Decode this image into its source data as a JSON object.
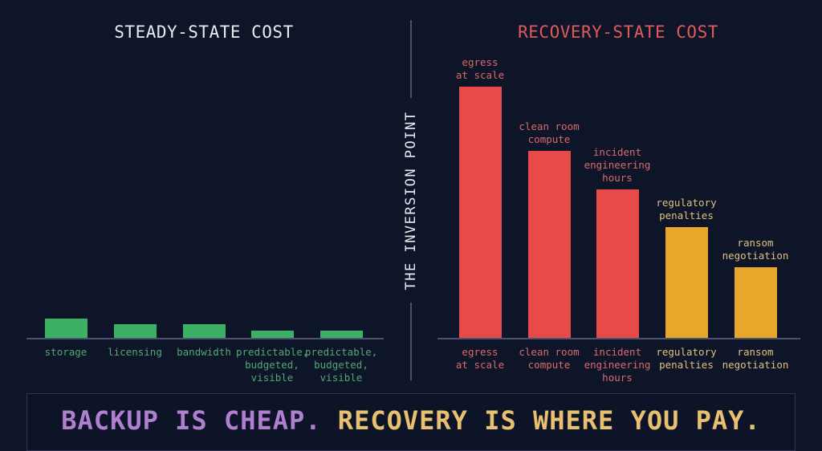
{
  "header": {
    "left_title": "STEADY-STATE COST",
    "right_title": "RECOVERY-STATE COST",
    "divider_label": "THE INVERSION POINT"
  },
  "footer": {
    "part_a": "BACKUP IS CHEAP.",
    "part_b": "RECOVERY IS WHERE YOU PAY."
  },
  "colors": {
    "background": "#0f1528",
    "steady_bar": "#3cb064",
    "steady_label": "#4fa872",
    "recovery_red": "#e84a4a",
    "recovery_red_label": "#d86a6a",
    "recovery_amber": "#e8a62a",
    "recovery_amber_label": "#e0c080",
    "footer_purple": "#b07fd0",
    "footer_gold": "#e8c070"
  },
  "chart_data": [
    {
      "type": "bar",
      "title": "STEADY-STATE COST",
      "xlabel": "",
      "ylabel": "",
      "categories": [
        "storage",
        "licensing",
        "bandwidth",
        "predictable,\nbudgeted,\nvisible",
        "predictable,\nbudgeted,\nvisible"
      ],
      "values": [
        24,
        17,
        17,
        9,
        9
      ],
      "ylim": [
        0,
        320
      ],
      "grid": false,
      "legend": null,
      "bar_colors": [
        "#3cb064",
        "#3cb064",
        "#3cb064",
        "#3cb064",
        "#3cb064"
      ],
      "label_color": "#4fa872"
    },
    {
      "type": "bar",
      "title": "RECOVERY-STATE COST",
      "xlabel": "",
      "ylabel": "",
      "categories": [
        "egress\nat scale",
        "clean room\ncompute",
        "incident\nengineering\nhours",
        "regulatory\npenalties",
        "ransom\nnegotiation"
      ],
      "values": [
        313,
        233,
        185,
        138,
        88
      ],
      "ylim": [
        0,
        320
      ],
      "grid": false,
      "legend": null,
      "annotations": [
        "egress\nat scale",
        "clean room\ncompute",
        "incident\nengineering\nhours",
        "regulatory\npenalties",
        "ransom\nnegotiation"
      ],
      "bar_colors": [
        "#e84a4a",
        "#e84a4a",
        "#e84a4a",
        "#e8a62a",
        "#e8a62a"
      ],
      "label_colors": [
        "#d86a6a",
        "#d86a6a",
        "#d86a6a",
        "#e0c080",
        "#e0c080"
      ]
    }
  ]
}
